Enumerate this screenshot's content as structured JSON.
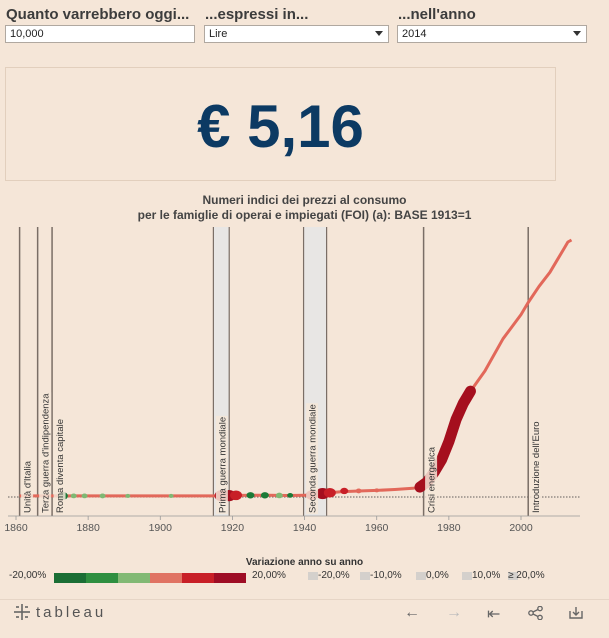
{
  "controls": {
    "amount_label": "Quanto varrebbero oggi...",
    "amount_value": "10,000",
    "currency_label": "...espressi in...",
    "currency_value": "Lire",
    "year_label": "...nell'anno",
    "year_value": "2014"
  },
  "result": {
    "value": "€ 5,16"
  },
  "chart_title": {
    "line1": "Numeri indici dei prezzi al consumo",
    "line2": "per le famiglie di operai e impiegati (FOI) (a): BASE 1913=1"
  },
  "chart_data": {
    "type": "line",
    "title": "Numeri indici dei prezzi al consumo per le famiglie di operai e impiegati (FOI) (a): BASE 1913=1",
    "xlabel": "",
    "ylabel": "",
    "xlim": [
      1858,
      2017
    ],
    "x_ticks": [
      "1860",
      "1880",
      "1900",
      "1920",
      "1940",
      "1960",
      "1980",
      "2000"
    ],
    "series": [
      {
        "x": [
          1861,
          1866,
          1870,
          1875,
          1880,
          1885,
          1890,
          1895,
          1900,
          1905,
          1910,
          1913,
          1915,
          1916,
          1917,
          1918,
          1919,
          1920,
          1925,
          1930,
          1935,
          1938,
          1940,
          1942,
          1944,
          1945,
          1947,
          1950,
          1955,
          1960,
          1965,
          1970,
          1972,
          1974,
          1976,
          1978,
          1980,
          1982,
          1984,
          1986,
          1990,
          1995,
          2000,
          2002,
          2005,
          2008,
          2010,
          2012,
          2013,
          2014
        ],
        "y": [
          0.5,
          0.5,
          0.5,
          0.5,
          0.5,
          0.4,
          0.5,
          0.5,
          0.5,
          0.4,
          0.5,
          0.5,
          0.6,
          0.8,
          1.2,
          1.6,
          1.9,
          2.5,
          3.5,
          3.5,
          2.6,
          3,
          3.5,
          4.6,
          8,
          12,
          16,
          21,
          25,
          28,
          32,
          38,
          44,
          70,
          120,
          180,
          270,
          380,
          460,
          520,
          620,
          780,
          900,
          960,
          1040,
          1110,
          1170,
          1230,
          1260,
          1270
        ]
      }
    ],
    "events": [
      {
        "year": 1861,
        "label": "Unità d'Italia"
      },
      {
        "year": 1866,
        "label": "Terza guerra d'indipendenza"
      },
      {
        "year": 1870,
        "label": "Roma diventa capitale"
      },
      {
        "year": 1915,
        "end": 1918,
        "label": "Prima guerra mondiale"
      },
      {
        "year": 1940,
        "end": 1945,
        "label": "Seconda guerra mondiale"
      },
      {
        "year": 1973,
        "label": "Crisi energetica"
      },
      {
        "year": 2002,
        "label": "Introduzione dell'Euro"
      }
    ],
    "colors": {
      "line": "#e2685a",
      "event_line": "#7a6e66",
      "war_band": "#e8e6e4",
      "dark_red": "#a50f1e",
      "green_dark": "#1a7a37",
      "green_light": "#7fb873"
    }
  },
  "legend": {
    "title": "Variazione anno su anno",
    "left_label": "-20,00%",
    "right_label": "20,00%",
    "colors": [
      "#1b6e35",
      "#2f8f40",
      "#82b974",
      "#e07363",
      "#c81f27",
      "#9e0d25"
    ],
    "size_items": [
      "-20,0%",
      "-10,0%",
      "0,0%",
      "10,0%",
      "≥ 20,0%"
    ]
  },
  "footer": {
    "logo": "tableau",
    "icons": [
      "undo-icon",
      "redo-icon",
      "revert-icon",
      "share-icon",
      "download-icon"
    ]
  }
}
